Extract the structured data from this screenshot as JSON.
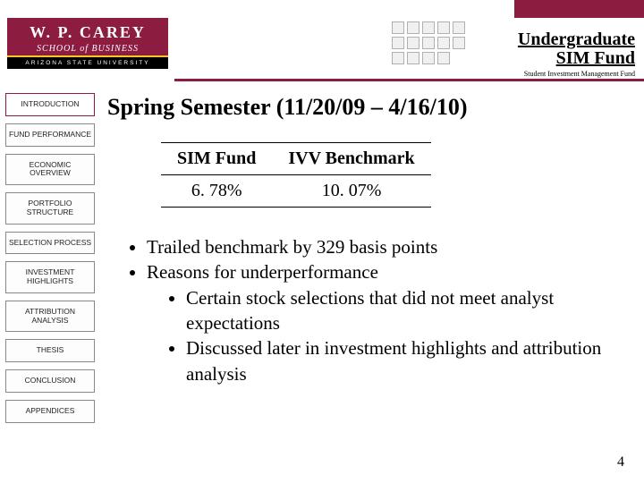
{
  "brand": {
    "name_line1": "W. P. CAREY",
    "name_line2": "SCHOOL of BUSINESS",
    "university": "ARIZONA STATE UNIVERSITY"
  },
  "header": {
    "title_line1": "Undergraduate",
    "title_line2": "SIM Fund",
    "subtitle": "Student Investment Management Fund"
  },
  "nav": [
    "INTRODUCTION",
    "FUND PERFORMANCE",
    "ECONOMIC OVERVIEW",
    "PORTFOLIO STRUCTURE",
    "SELECTION PROCESS",
    "INVESTMENT HIGHLIGHTS",
    "ATTRIBUTION ANALYSIS",
    "THESIS",
    "CONCLUSION",
    "APPENDICES"
  ],
  "active_nav_index": 0,
  "slide": {
    "title": "Spring Semester (11/20/09 – 4/16/10)",
    "table": {
      "headers": [
        "SIM Fund",
        "IVV Benchmark"
      ],
      "row": [
        "6. 78%",
        "10. 07%"
      ]
    },
    "bullets": [
      "Trailed benchmark by 329 basis points",
      "Reasons for underperformance"
    ],
    "sub_bullets": [
      "Certain stock selections that did not meet analyst expectations",
      "Discussed later in investment highlights and attribution analysis"
    ]
  },
  "page_number": "4",
  "colors": {
    "maroon": "#8c1d40",
    "gold": "#ffc627"
  }
}
